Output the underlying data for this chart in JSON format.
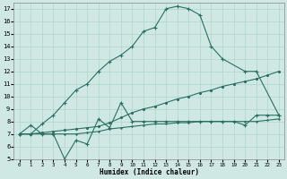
{
  "xlabel": "Humidex (Indice chaleur)",
  "xlim": [
    -0.5,
    23.5
  ],
  "ylim": [
    5,
    17.5
  ],
  "xticks": [
    0,
    1,
    2,
    3,
    4,
    5,
    6,
    7,
    8,
    9,
    10,
    11,
    12,
    13,
    14,
    15,
    16,
    17,
    18,
    19,
    20,
    21,
    22,
    23
  ],
  "yticks": [
    5,
    6,
    7,
    8,
    9,
    10,
    11,
    12,
    13,
    14,
    15,
    16,
    17
  ],
  "bg_color": "#cfe8e4",
  "line_color": "#2a7060",
  "grid_color": "#b0d5cc",
  "line_peak_x": [
    0,
    1,
    2,
    3,
    4,
    5,
    6,
    7,
    8,
    9,
    10,
    11,
    12,
    13,
    14,
    15,
    16,
    17,
    18,
    20,
    21,
    23
  ],
  "line_peak_y": [
    7.0,
    7.0,
    7.8,
    8.5,
    9.5,
    10.5,
    11.0,
    12.0,
    12.8,
    13.3,
    14.0,
    15.2,
    15.5,
    17.0,
    17.2,
    17.0,
    16.5,
    14.0,
    13.0,
    12.0,
    12.0,
    8.5
  ],
  "line_grad_x": [
    0,
    1,
    2,
    3,
    4,
    5,
    6,
    7,
    8,
    9,
    10,
    11,
    12,
    13,
    14,
    15,
    16,
    17,
    18,
    19,
    20,
    21,
    22,
    23
  ],
  "line_grad_y": [
    7.0,
    7.0,
    7.1,
    7.2,
    7.3,
    7.4,
    7.5,
    7.6,
    7.9,
    8.3,
    8.7,
    9.0,
    9.2,
    9.5,
    9.8,
    10.0,
    10.3,
    10.5,
    10.8,
    11.0,
    11.2,
    11.4,
    11.7,
    12.0
  ],
  "line_osc_x": [
    0,
    1,
    2,
    3,
    4,
    5,
    6,
    7,
    8,
    9,
    10,
    11,
    12,
    13,
    14,
    15,
    16,
    17,
    18,
    19,
    20,
    21,
    22,
    23
  ],
  "line_osc_y": [
    7.0,
    7.7,
    7.0,
    7.0,
    5.0,
    6.5,
    6.2,
    8.2,
    7.5,
    9.5,
    8.0,
    8.0,
    8.0,
    8.0,
    8.0,
    8.0,
    8.0,
    8.0,
    8.0,
    8.0,
    7.7,
    8.5,
    8.5,
    8.5
  ],
  "line_flat_x": [
    0,
    1,
    2,
    3,
    4,
    5,
    6,
    7,
    8,
    9,
    10,
    11,
    12,
    13,
    14,
    15,
    16,
    17,
    18,
    19,
    20,
    21,
    22,
    23
  ],
  "line_flat_y": [
    7.0,
    7.0,
    7.0,
    7.0,
    7.0,
    7.0,
    7.1,
    7.2,
    7.4,
    7.5,
    7.6,
    7.7,
    7.8,
    7.8,
    7.9,
    7.9,
    8.0,
    8.0,
    8.0,
    8.0,
    8.0,
    8.0,
    8.1,
    8.2
  ]
}
